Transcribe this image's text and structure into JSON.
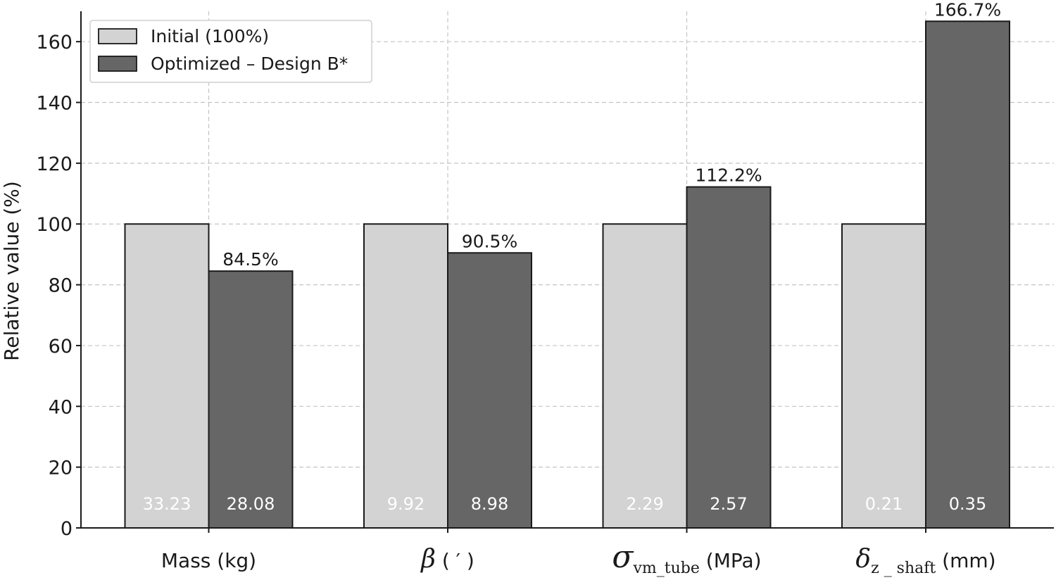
{
  "chart_data": {
    "type": "bar",
    "title": "",
    "xlabel": "",
    "ylabel": "Relative value (%)",
    "ylim": [
      0,
      170
    ],
    "yticks": [
      0,
      20,
      40,
      60,
      80,
      100,
      120,
      140,
      160
    ],
    "grid": true,
    "legend_position": "top-left",
    "categories": [
      {
        "main": "Mass (kg)",
        "symbol": "",
        "sub": "",
        "suffix": ""
      },
      {
        "main": "",
        "symbol": "β",
        "sub": "",
        "suffix": " ( ′ )"
      },
      {
        "main": "",
        "symbol": "σ",
        "sub": "vm_tube",
        "suffix": " (MPa)"
      },
      {
        "main": "",
        "symbol": "δ",
        "sub": "z _ shaft",
        "suffix": " (mm)"
      }
    ],
    "series": [
      {
        "name": "Initial (100%)",
        "color": "#d3d3d3",
        "values": [
          100,
          100,
          100,
          100
        ],
        "raw_labels": [
          "33.23",
          "9.92",
          "2.29",
          "0.21"
        ],
        "value_labels": [
          "",
          "",
          "",
          ""
        ]
      },
      {
        "name": "Optimized – Design B*",
        "color": "#666666",
        "values": [
          84.5,
          90.5,
          112.2,
          166.7
        ],
        "raw_labels": [
          "28.08",
          "8.98",
          "2.57",
          "0.35"
        ],
        "value_labels": [
          "84.5%",
          "90.5%",
          "112.2%",
          "166.7%"
        ]
      }
    ]
  }
}
